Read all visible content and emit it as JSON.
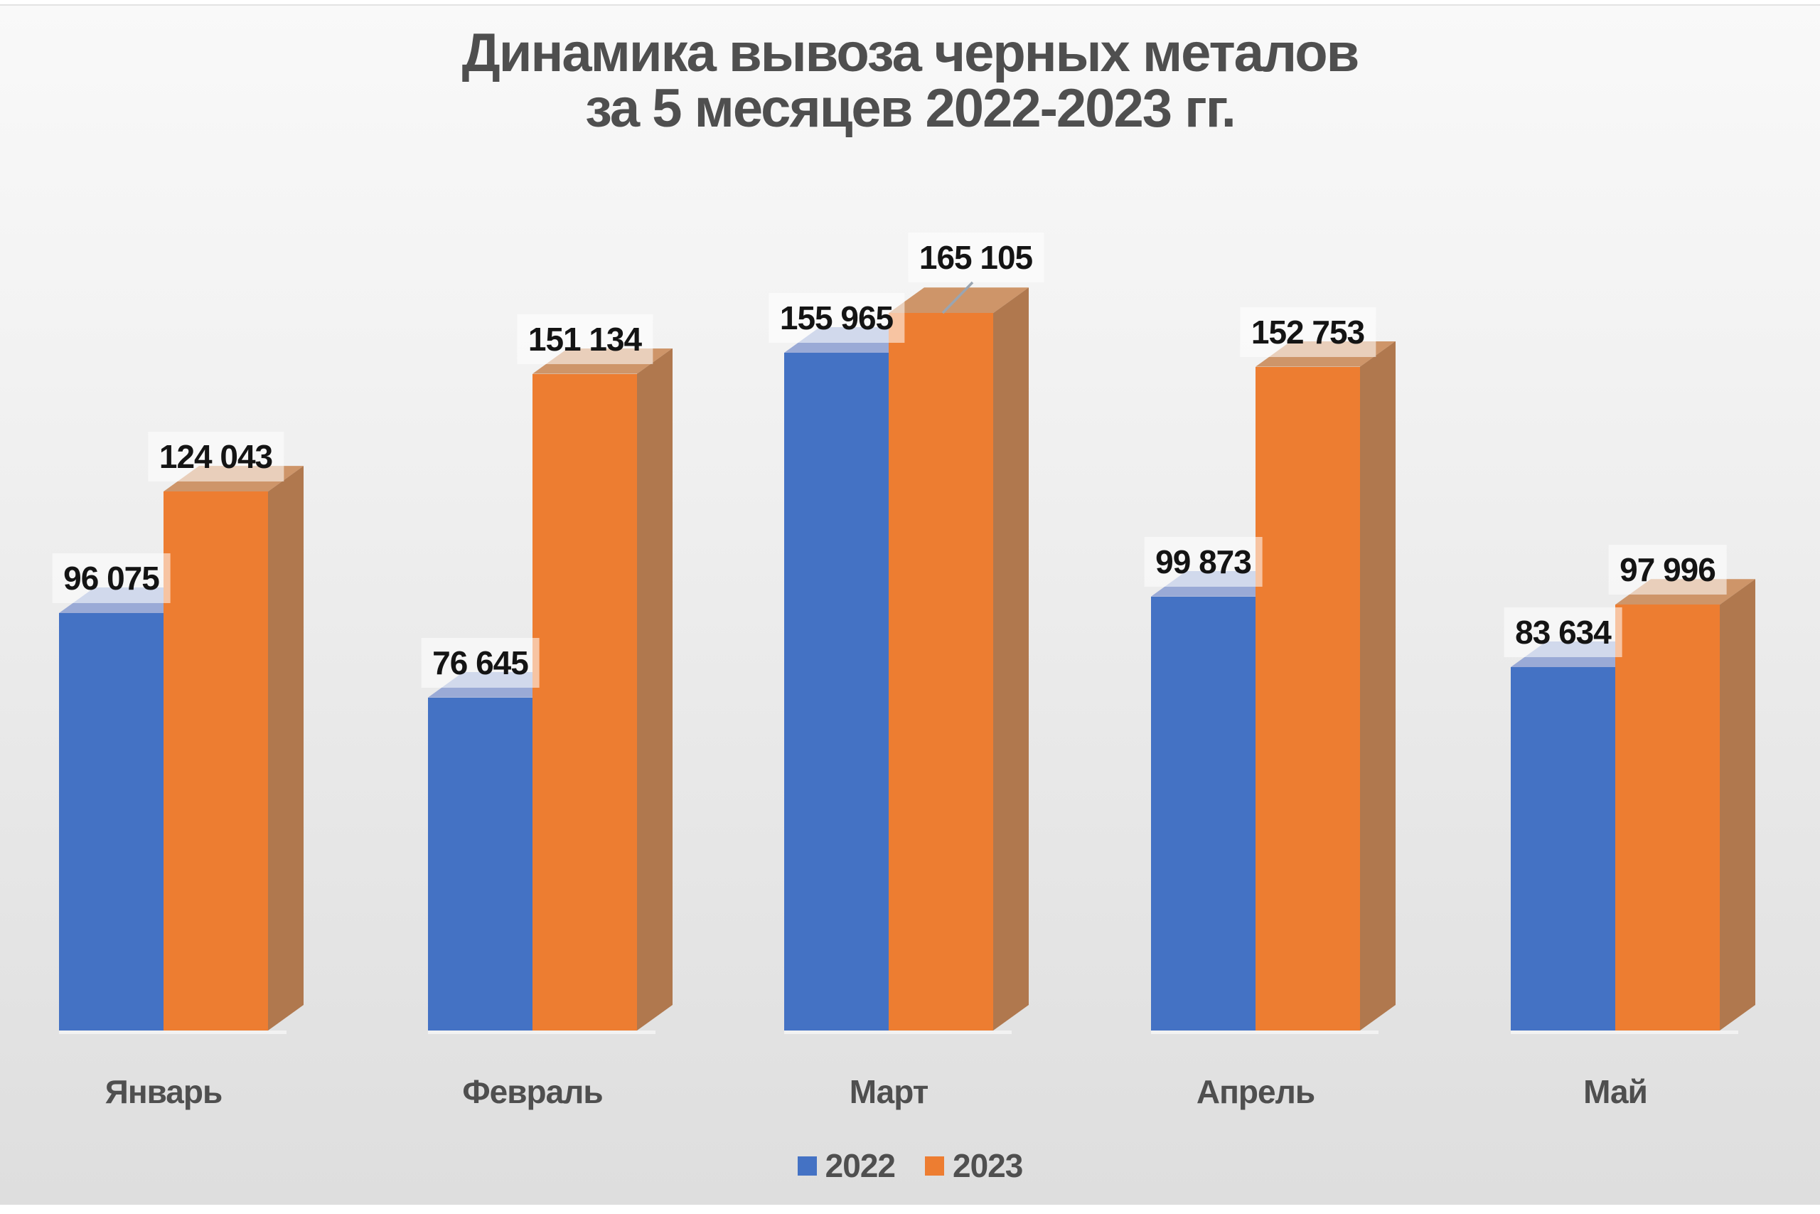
{
  "page": {
    "background": "#ffffff",
    "panel_gradient_top": "#f9f9f9",
    "panel_gradient_bottom": "#dedede"
  },
  "title": {
    "line1": "Динамика вывоза черных металов",
    "line2": "за 5 месяцев 2022-2023 гг.",
    "color": "#4f4f4f"
  },
  "legend": {
    "position": "bottom",
    "items": [
      {
        "label": "2022",
        "color": "#4472C4"
      },
      {
        "label": "2023",
        "color": "#ED7D31"
      }
    ]
  },
  "chart_data": {
    "type": "bar",
    "style": "3d-clustered-column",
    "title": "Динамика вывоза черных металов за 5 месяцев 2022-2023 гг.",
    "categories": [
      "Январь",
      "Февраль",
      "Март",
      "Апрель",
      "Май"
    ],
    "series": [
      {
        "name": "2022",
        "color": "#4472C4",
        "top_face_color": "#9AAAD6",
        "side_face_color": "#3A5FA3",
        "values": [
          96075,
          76645,
          155965,
          99873,
          83634
        ],
        "data_labels": [
          "96 075",
          "76 645",
          "155 965",
          "99 873",
          "83 634"
        ]
      },
      {
        "name": "2023",
        "color": "#ED7D31",
        "top_face_color": "#CE9569",
        "side_face_color": "#B0784E",
        "values": [
          124043,
          151134,
          165105,
          152753,
          97996
        ],
        "data_labels": [
          "124 043",
          "151 134",
          "165 105",
          "152 753",
          "97 996"
        ]
      }
    ],
    "xlabel": "",
    "ylabel": "",
    "ylim": [
      0,
      180000
    ],
    "grid": false,
    "legend_position": "bottom",
    "data_label_background": "rgba(255,255,255,0.55)",
    "data_label_color": "#141414",
    "leader_line_color": "#9aa5b1",
    "label_overrides": [
      {
        "series_index": 1,
        "point_index": 2,
        "dx": 49,
        "dy": -29,
        "leader_line": true
      }
    ]
  }
}
